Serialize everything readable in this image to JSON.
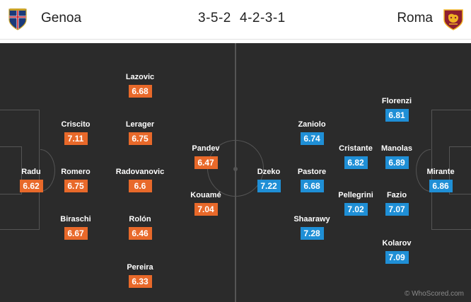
{
  "header": {
    "home_team": "Genoa",
    "away_team": "Roma",
    "home_formation": "3-5-2",
    "away_formation": "4-2-3-1",
    "home_crest_icon": "genoa-crest-icon",
    "away_crest_icon": "roma-crest-icon"
  },
  "colors": {
    "home_rating_bg": "#e8692a",
    "away_rating_bg": "#1f8fd6",
    "pitch_bg": "#2b2b2b"
  },
  "home_players": [
    {
      "name": "Radu",
      "rating": "6.62"
    },
    {
      "name": "Criscito",
      "rating": "7.11"
    },
    {
      "name": "Romero",
      "rating": "6.75"
    },
    {
      "name": "Biraschi",
      "rating": "6.67"
    },
    {
      "name": "Lazovic",
      "rating": "6.68"
    },
    {
      "name": "Lerager",
      "rating": "6.75"
    },
    {
      "name": "Radovanovic",
      "rating": "6.6"
    },
    {
      "name": "Rolón",
      "rating": "6.46"
    },
    {
      "name": "Pereira",
      "rating": "6.33"
    },
    {
      "name": "Pandev",
      "rating": "6.47"
    },
    {
      "name": "Kouamé",
      "rating": "7.04"
    }
  ],
  "away_players": [
    {
      "name": "Mirante",
      "rating": "6.86"
    },
    {
      "name": "Florenzi",
      "rating": "6.81"
    },
    {
      "name": "Manolas",
      "rating": "6.89"
    },
    {
      "name": "Fazio",
      "rating": "7.07"
    },
    {
      "name": "Kolarov",
      "rating": "7.09"
    },
    {
      "name": "Cristante",
      "rating": "6.82"
    },
    {
      "name": "Pellegrini",
      "rating": "7.02"
    },
    {
      "name": "Zaniolo",
      "rating": "6.74"
    },
    {
      "name": "Pastore",
      "rating": "6.68"
    },
    {
      "name": "Shaarawy",
      "rating": "7.28"
    },
    {
      "name": "Dzeko",
      "rating": "7.22"
    }
  ],
  "watermark": "© WhoScored.com"
}
